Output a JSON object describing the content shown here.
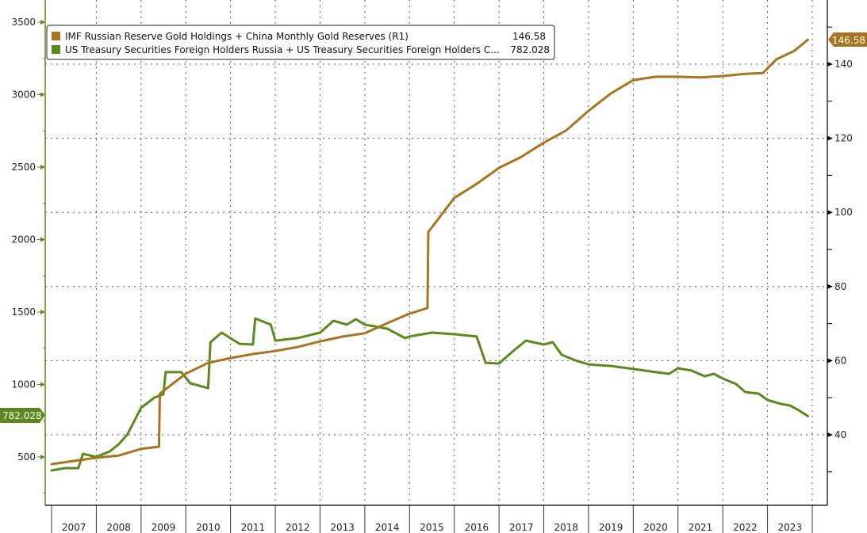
{
  "chart_data": {
    "type": "line",
    "title": "",
    "xlabel": "",
    "ylabel": "",
    "x_range": [
      2007.0,
      2024.0
    ],
    "x_tick_labels": [
      "2007",
      "2008",
      "2009",
      "2010",
      "2011",
      "2012",
      "2013",
      "2014",
      "2015",
      "2016",
      "2017",
      "2018",
      "2019",
      "2020",
      "2021",
      "2022",
      "2023"
    ],
    "left_axis": {
      "ylim": [
        300,
        3600
      ],
      "ticks": [
        500,
        1000,
        1500,
        2000,
        2500,
        3000,
        3500
      ],
      "tick_labels": [
        "500",
        "1000",
        "1500",
        "2000",
        "2500",
        "3000",
        "3500"
      ]
    },
    "right_axis": {
      "ylim": [
        22,
        156
      ],
      "ticks": [
        40,
        60,
        80,
        100,
        120,
        140
      ],
      "tick_labels": [
        "40",
        "60",
        "80",
        "100",
        "120",
        "140"
      ]
    },
    "grid": true,
    "legend_position": "top-left",
    "series": [
      {
        "name": "IMF Russian Reserve Gold Holdings + China Monthly Gold Reserves (R1)",
        "axis": "right",
        "color": "#a87420",
        "last_value_label": "146.58",
        "x": [
          2007.0,
          2008.0,
          2008.5,
          2009.0,
          2009.4,
          2009.42,
          2010.0,
          2010.5,
          2011.0,
          2011.5,
          2012.0,
          2012.5,
          2013.0,
          2013.5,
          2014.0,
          2014.5,
          2015.0,
          2015.4,
          2015.42,
          2016.0,
          2016.5,
          2017.0,
          2017.5,
          2018.0,
          2018.5,
          2019.0,
          2019.5,
          2020.0,
          2020.5,
          2021.0,
          2021.5,
          2022.0,
          2022.5,
          2022.9,
          2023.2,
          2023.6,
          2023.9
        ],
        "values": [
          32.1,
          33.8,
          34.4,
          36.2,
          36.8,
          51.1,
          56.5,
          59.4,
          60.7,
          61.8,
          62.6,
          63.7,
          65.2,
          66.5,
          67.4,
          70.1,
          72.7,
          74.2,
          94.7,
          103.9,
          107.7,
          112.0,
          115.0,
          118.8,
          122.1,
          127.4,
          132.1,
          135.7,
          136.6,
          136.6,
          136.4,
          136.8,
          137.4,
          137.6,
          141.3,
          143.6,
          146.58
        ]
      },
      {
        "name": "US Treasury Securities Foreign Holders Russia + US Treasury Securities Foreign Holders C...",
        "axis": "left",
        "color": "#5a8a1e",
        "last_value_label": "782.028",
        "x": [
          2007.0,
          2007.3,
          2007.6,
          2007.7,
          2008.0,
          2008.3,
          2008.5,
          2008.7,
          2009.0,
          2009.3,
          2009.5,
          2009.55,
          2009.9,
          2010.1,
          2010.5,
          2010.55,
          2010.8,
          2011.2,
          2011.5,
          2011.55,
          2011.9,
          2012.0,
          2012.5,
          2013.0,
          2013.3,
          2013.6,
          2013.8,
          2014.0,
          2014.5,
          2014.9,
          2015.0,
          2015.5,
          2016.0,
          2016.5,
          2016.7,
          2017.0,
          2017.3,
          2017.6,
          2018.0,
          2018.2,
          2018.4,
          2018.7,
          2019.0,
          2019.5,
          2020.0,
          2020.5,
          2020.8,
          2021.0,
          2021.3,
          2021.6,
          2021.8,
          2022.0,
          2022.3,
          2022.5,
          2022.8,
          2023.0,
          2023.3,
          2023.5,
          2023.7,
          2023.9
        ],
        "values": [
          407,
          423,
          423,
          522,
          500,
          538,
          587,
          658,
          839,
          910,
          932,
          1085,
          1085,
          1008,
          975,
          1292,
          1358,
          1281,
          1276,
          1456,
          1413,
          1303,
          1320,
          1358,
          1440,
          1413,
          1451,
          1413,
          1385,
          1320,
          1331,
          1358,
          1347,
          1331,
          1150,
          1145,
          1227,
          1303,
          1276,
          1292,
          1205,
          1167,
          1139,
          1128,
          1107,
          1085,
          1074,
          1112,
          1096,
          1057,
          1074,
          1041,
          1003,
          948,
          937,
          893,
          866,
          855,
          822,
          782.028
        ]
      }
    ]
  }
}
